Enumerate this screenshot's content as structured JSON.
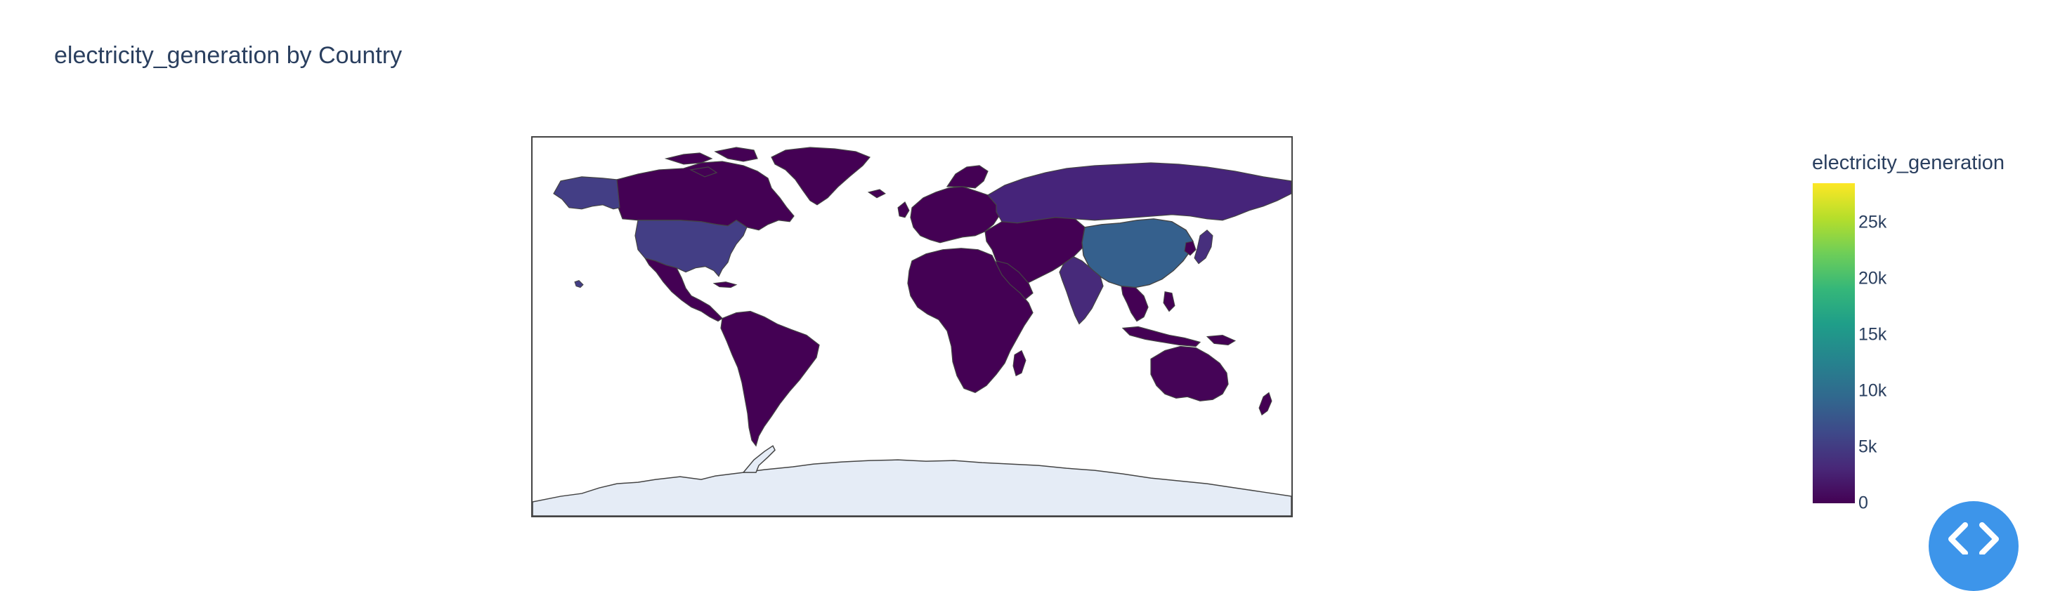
{
  "chart": {
    "title": "electricity_generation by Country"
  },
  "colorbar": {
    "title": "electricity_generation",
    "colorscale": "viridis",
    "ticks": [
      {
        "label": "0",
        "value": 0
      },
      {
        "label": "5k",
        "value": 5000
      },
      {
        "label": "10k",
        "value": 10000
      },
      {
        "label": "15k",
        "value": 15000
      },
      {
        "label": "20k",
        "value": 20000
      },
      {
        "label": "25k",
        "value": 25000
      }
    ],
    "range": [
      0,
      28500
    ]
  },
  "chart_data": {
    "type": "choropleth",
    "title": "electricity_generation by Country",
    "colorbar_title": "electricity_generation",
    "colorscale": "viridis",
    "zmin": 0,
    "zmax": 28500,
    "regions": [
      {
        "name": "China",
        "value": 8500
      },
      {
        "name": "United States",
        "value": 4300
      },
      {
        "name": "India",
        "value": 1600
      },
      {
        "name": "Russia",
        "value": 1100
      },
      {
        "name": "Japan",
        "value": 1000
      },
      {
        "name": "Canada",
        "value": 650
      },
      {
        "name": "Brazil",
        "value": 600
      },
      {
        "name": "Australia",
        "value": 260
      }
    ]
  },
  "colors": {
    "land_low": "#440154",
    "land_us": "#433e85",
    "land_china": "#35608d",
    "land_india": "#472a7a",
    "land_russia": "#46247a",
    "ocean": "#ffffff",
    "antarctica": "#e5ecf6",
    "border": "#444444",
    "button": "#3d95ea"
  },
  "controls": {
    "code_button_icon": "code-icon"
  }
}
